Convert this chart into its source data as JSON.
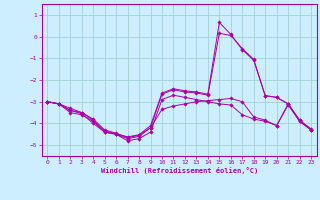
{
  "xlabel": "Windchill (Refroidissement éolien,°C)",
  "bg_color": "#cceeff",
  "line_color": "#aa00aa",
  "grid_color": "#99cccc",
  "xlim": [
    -0.5,
    23.5
  ],
  "ylim": [
    -5.5,
    1.5
  ],
  "yticks": [
    1,
    0,
    -1,
    -2,
    -3,
    -4,
    -5
  ],
  "xticks": [
    0,
    1,
    2,
    3,
    4,
    5,
    6,
    7,
    8,
    9,
    10,
    11,
    12,
    13,
    14,
    15,
    16,
    17,
    18,
    19,
    20,
    21,
    22,
    23
  ],
  "series": [
    {
      "x": [
        0,
        1,
        2,
        3,
        4,
        5,
        6,
        7,
        8,
        9,
        10,
        11,
        12,
        13,
        14,
        15,
        16,
        17,
        18,
        19,
        20,
        21,
        22,
        23
      ],
      "y": [
        -3.0,
        -3.1,
        -3.3,
        -3.5,
        -3.8,
        -4.3,
        -4.45,
        -4.65,
        -4.55,
        -4.2,
        -3.35,
        -3.2,
        -3.1,
        -3.0,
        -2.95,
        -2.9,
        -2.85,
        -3.0,
        -3.7,
        -3.85,
        -4.1,
        -3.15,
        -3.9,
        -4.3
      ]
    },
    {
      "x": [
        0,
        1,
        2,
        3,
        4,
        5,
        6,
        7,
        8,
        9,
        10,
        11,
        12,
        13,
        14,
        15,
        16,
        17,
        18,
        19,
        20,
        21,
        22,
        23
      ],
      "y": [
        -3.0,
        -3.1,
        -3.4,
        -3.5,
        -3.85,
        -4.35,
        -4.48,
        -4.62,
        -4.52,
        -4.1,
        -2.6,
        -2.4,
        -2.5,
        -2.55,
        -2.65,
        0.65,
        0.1,
        -0.6,
        -1.1,
        -2.72,
        -2.8,
        -3.1,
        -3.85,
        -4.25
      ]
    },
    {
      "x": [
        0,
        1,
        2,
        3,
        4,
        5,
        6,
        7,
        8,
        9,
        10,
        11,
        12,
        13,
        14,
        15,
        16,
        17,
        18,
        19,
        20,
        21,
        22,
        23
      ],
      "y": [
        -3.0,
        -3.1,
        -3.4,
        -3.55,
        -4.0,
        -4.4,
        -4.5,
        -4.7,
        -4.6,
        -4.2,
        -2.65,
        -2.45,
        -2.55,
        -2.6,
        -2.7,
        0.15,
        0.05,
        -0.55,
        -1.05,
        -2.72,
        -2.8,
        -3.1,
        -3.85,
        -4.3
      ]
    },
    {
      "x": [
        0,
        1,
        2,
        3,
        4,
        5,
        6,
        7,
        8,
        9,
        10,
        11,
        12,
        13,
        14,
        15,
        16,
        17,
        18,
        19,
        20,
        21,
        22,
        23
      ],
      "y": [
        -3.0,
        -3.1,
        -3.5,
        -3.6,
        -3.9,
        -4.4,
        -4.5,
        -4.8,
        -4.7,
        -4.4,
        -2.9,
        -2.7,
        -2.8,
        -2.9,
        -3.0,
        -3.1,
        -3.15,
        -3.6,
        -3.8,
        -3.9,
        -4.1,
        -3.1,
        -3.9,
        -4.3
      ]
    }
  ]
}
